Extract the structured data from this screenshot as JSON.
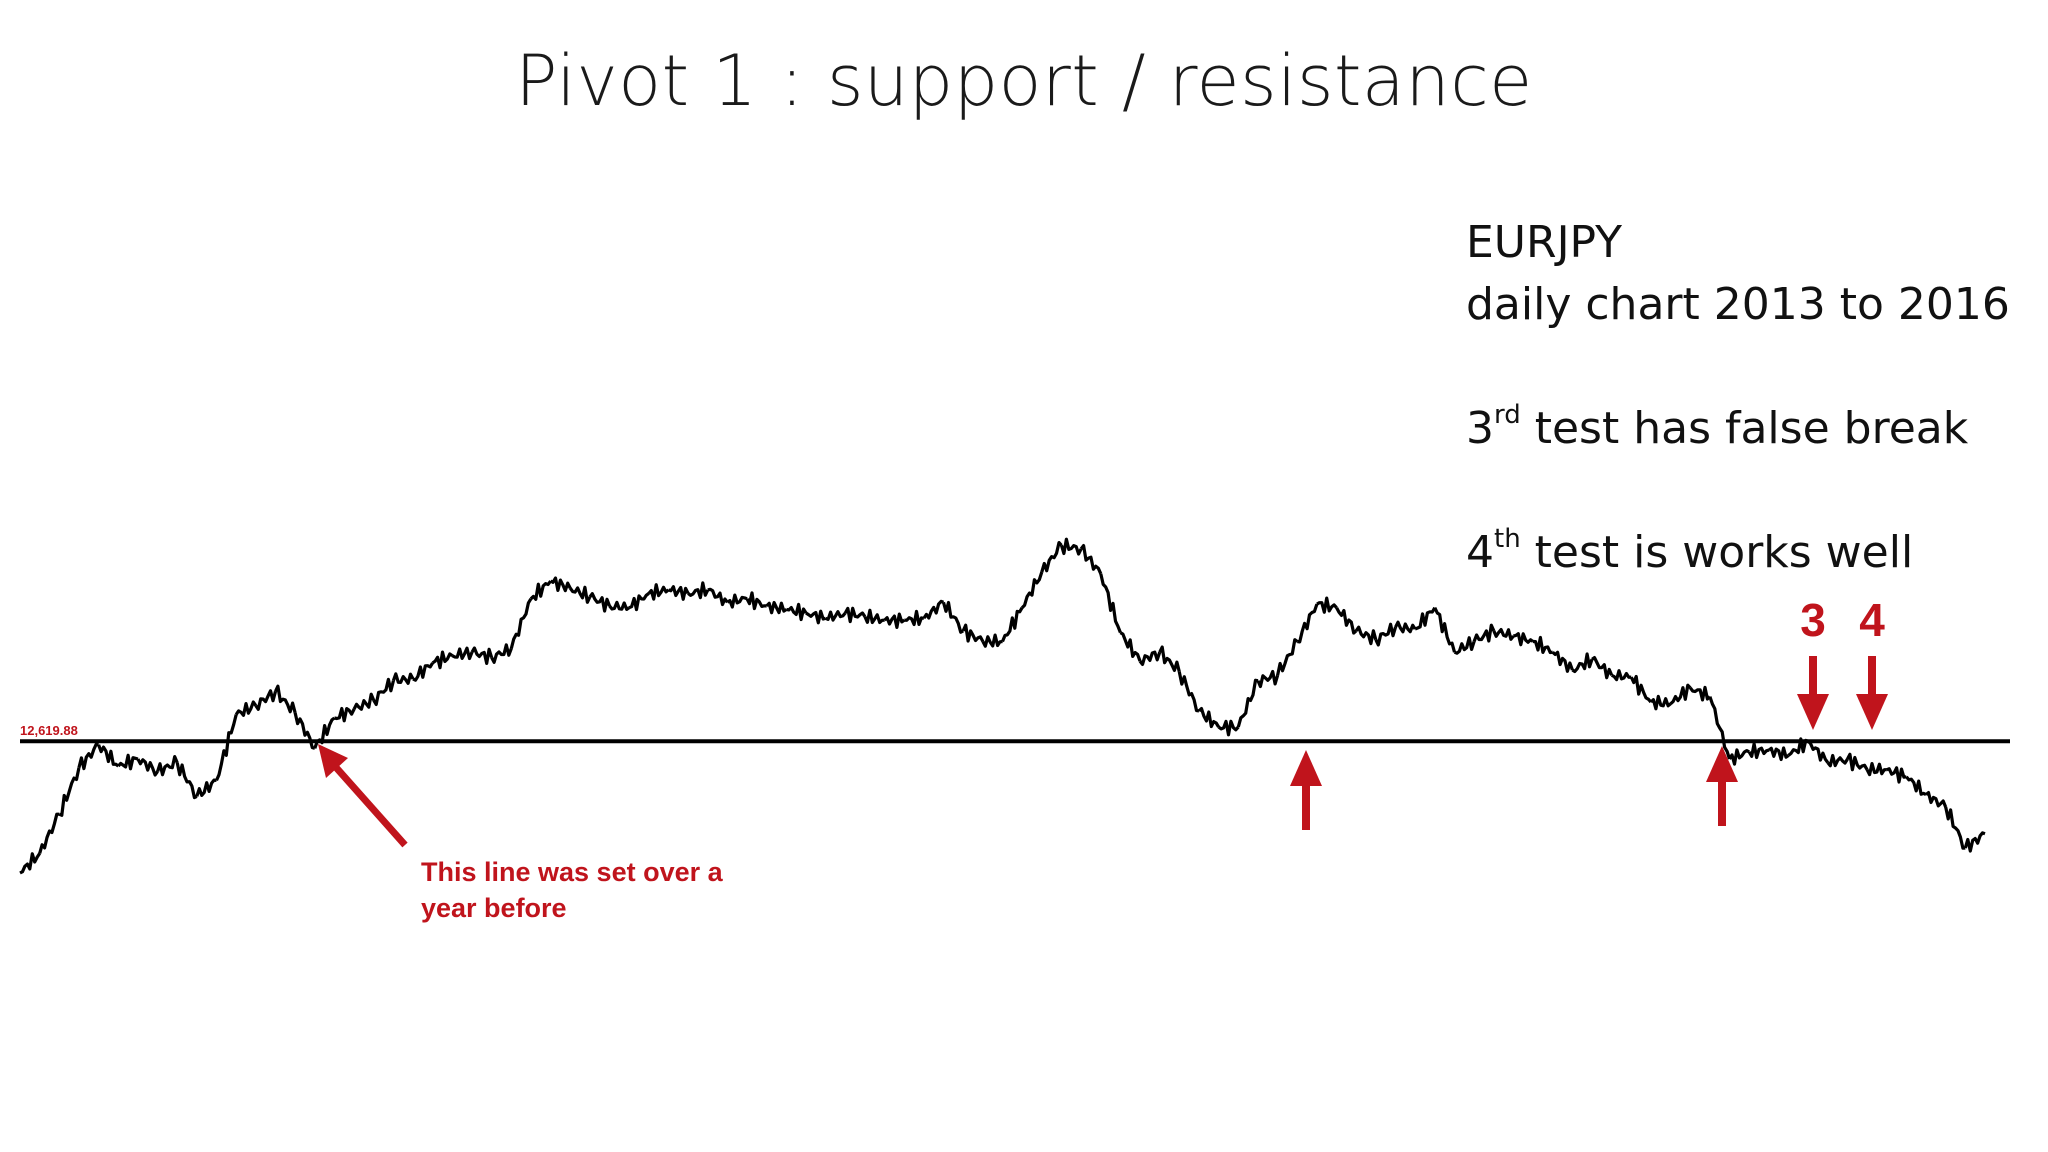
{
  "slide": {
    "title": "Pivot 1 : support / resistance",
    "notes": {
      "pair": "EURJPY",
      "period": "daily chart 2013 to 2016",
      "test3_num": "3",
      "test3_sup": "rd",
      "test3_text": " test has false break",
      "test4_num": "4",
      "test4_sup": "th",
      "test4_text": " test is works well"
    }
  },
  "annotations": {
    "line_note_1": "This line was set over a",
    "line_note_2": "year before",
    "marker_3": "3",
    "marker_4": "4"
  },
  "colors": {
    "price": "#000000",
    "level_line": "#000000",
    "annotation": "#c0141c"
  },
  "chart_data": {
    "type": "line",
    "title": "",
    "xlabel": "",
    "ylabel": "",
    "level_label": "12,619.88",
    "level": 12619.88,
    "ylim": [
      11700,
      13750
    ],
    "x_range": [
      0,
      100
    ],
    "series": [
      {
        "x": [
          0,
          1,
          2,
          3,
          4,
          5,
          6,
          7,
          8,
          9,
          10,
          11,
          12,
          13,
          14,
          15,
          16,
          17,
          18,
          19,
          20,
          21,
          22,
          23,
          24,
          25,
          26,
          27,
          28,
          29,
          30,
          31,
          32,
          33,
          34,
          35,
          36,
          37,
          38,
          39,
          40,
          41,
          42,
          43,
          44,
          45,
          46,
          47,
          48,
          49,
          50,
          51,
          52,
          53,
          54,
          55,
          56,
          57,
          58,
          59,
          60,
          61,
          62,
          63,
          64,
          65,
          66,
          67,
          68,
          69,
          70,
          71,
          72,
          73,
          74,
          75,
          76,
          77,
          78,
          79,
          80,
          81,
          82,
          83,
          84,
          85,
          86,
          87,
          88,
          89,
          90,
          91,
          92,
          93,
          94,
          95,
          96,
          97,
          98,
          99,
          100
        ],
        "values": [
          11880,
          11990,
          12210,
          12470,
          12600,
          12480,
          12520,
          12450,
          12500,
          12310,
          12400,
          12770,
          12820,
          12900,
          12780,
          12580,
          12750,
          12800,
          12850,
          12960,
          12970,
          13060,
          13100,
          13120,
          13090,
          13140,
          13420,
          13520,
          13480,
          13430,
          13380,
          13370,
          13450,
          13470,
          13450,
          13470,
          13400,
          13420,
          13380,
          13360,
          13340,
          13310,
          13340,
          13320,
          13300,
          13300,
          13310,
          13400,
          13240,
          13180,
          13180,
          13370,
          13570,
          13720,
          13700,
          13560,
          13230,
          13070,
          13120,
          13010,
          12790,
          12700,
          12700,
          12960,
          12990,
          13180,
          13390,
          13370,
          13240,
          13190,
          13260,
          13250,
          13370,
          13120,
          13180,
          13240,
          13210,
          13180,
          13120,
          13020,
          13080,
          12990,
          12980,
          12840,
          12830,
          12920,
          12870,
          12520,
          12560,
          12570,
          12540,
          12620,
          12500,
          12520,
          12460,
          12460,
          12420,
          12320,
          12250,
          12020,
          12100
        ]
      }
    ],
    "grid": false,
    "legend": "none"
  }
}
